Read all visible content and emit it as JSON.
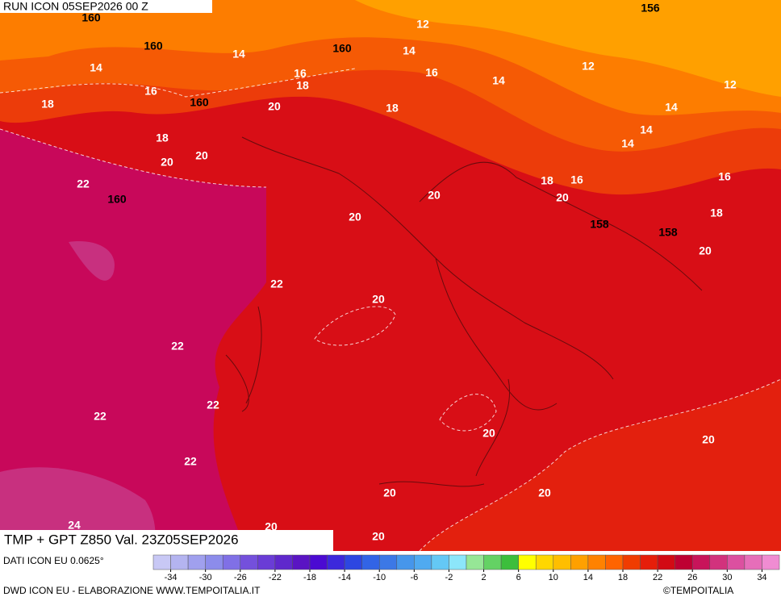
{
  "header": {
    "run": "RUN ICON 05SEP2026 00 Z"
  },
  "map": {
    "title": "TMP + GPT Z850 Val. 23Z05SEP2026",
    "contour_labels": [
      "160",
      "156",
      "12",
      "160",
      "14",
      "160",
      "14",
      "14",
      "12",
      "16",
      "18",
      "16",
      "14",
      "12",
      "16",
      "160",
      "18",
      "20",
      "18",
      "14",
      "14",
      "18",
      "14",
      "20",
      "20",
      "18",
      "16",
      "16",
      "22",
      "160",
      "20",
      "20",
      "20",
      "158",
      "18",
      "158",
      "20",
      "22",
      "20",
      "22",
      "22",
      "22",
      "20",
      "20",
      "22",
      "20",
      "20",
      "24",
      "20",
      "20"
    ]
  },
  "colorbar": {
    "colors": [
      "#c8c8f5",
      "#b4b4f0",
      "#a0a0ee",
      "#8c8ceb",
      "#8070e6",
      "#7450dc",
      "#6a3cd6",
      "#5f28cc",
      "#5a14c3",
      "#4b0ad2",
      "#3c28dc",
      "#2d46e1",
      "#3264e6",
      "#3c78e6",
      "#4696eb",
      "#50aaf0",
      "#64c8f5",
      "#8ce6fa",
      "#96e696",
      "#64d264",
      "#3cbe3c",
      "#ffff00",
      "#ffd700",
      "#ffbe00",
      "#ffa000",
      "#ff8200",
      "#ff6400",
      "#f03c00",
      "#e61e0a",
      "#d20a14",
      "#be0032",
      "#c8145a",
      "#d2327d",
      "#dc50a0",
      "#e66eb9",
      "#f08cd2"
    ],
    "ticks": [
      -34,
      -30,
      -26,
      -22,
      -18,
      -14,
      -10,
      -6,
      -2,
      2,
      6,
      10,
      14,
      18,
      22,
      26,
      30,
      34
    ]
  },
  "footer": {
    "source": "DATI ICON EU 0.0625°",
    "credit": "DWD ICON EU - ELABORAZIONE WWW.TEMPOITALIA.IT",
    "copyright": "©TEMPOITALIA"
  }
}
